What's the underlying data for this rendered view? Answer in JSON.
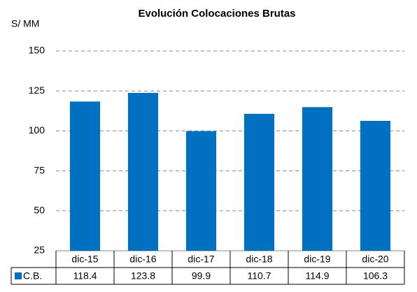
{
  "chart_data": {
    "type": "bar",
    "title": "Evolución Colocaciones Brutas",
    "y_label": "S/ MM",
    "categories": [
      "dic-15",
      "dic-16",
      "dic-17",
      "dic-18",
      "dic-19",
      "dic-20"
    ],
    "series": [
      {
        "name": "C.B.",
        "color": "#0070c0",
        "values": [
          118.4,
          123.8,
          99.9,
          110.7,
          114.9,
          106.3
        ]
      }
    ],
    "ylim": [
      25,
      150
    ],
    "yticks": [
      25,
      50,
      75,
      100,
      125,
      150
    ],
    "grid": true
  }
}
